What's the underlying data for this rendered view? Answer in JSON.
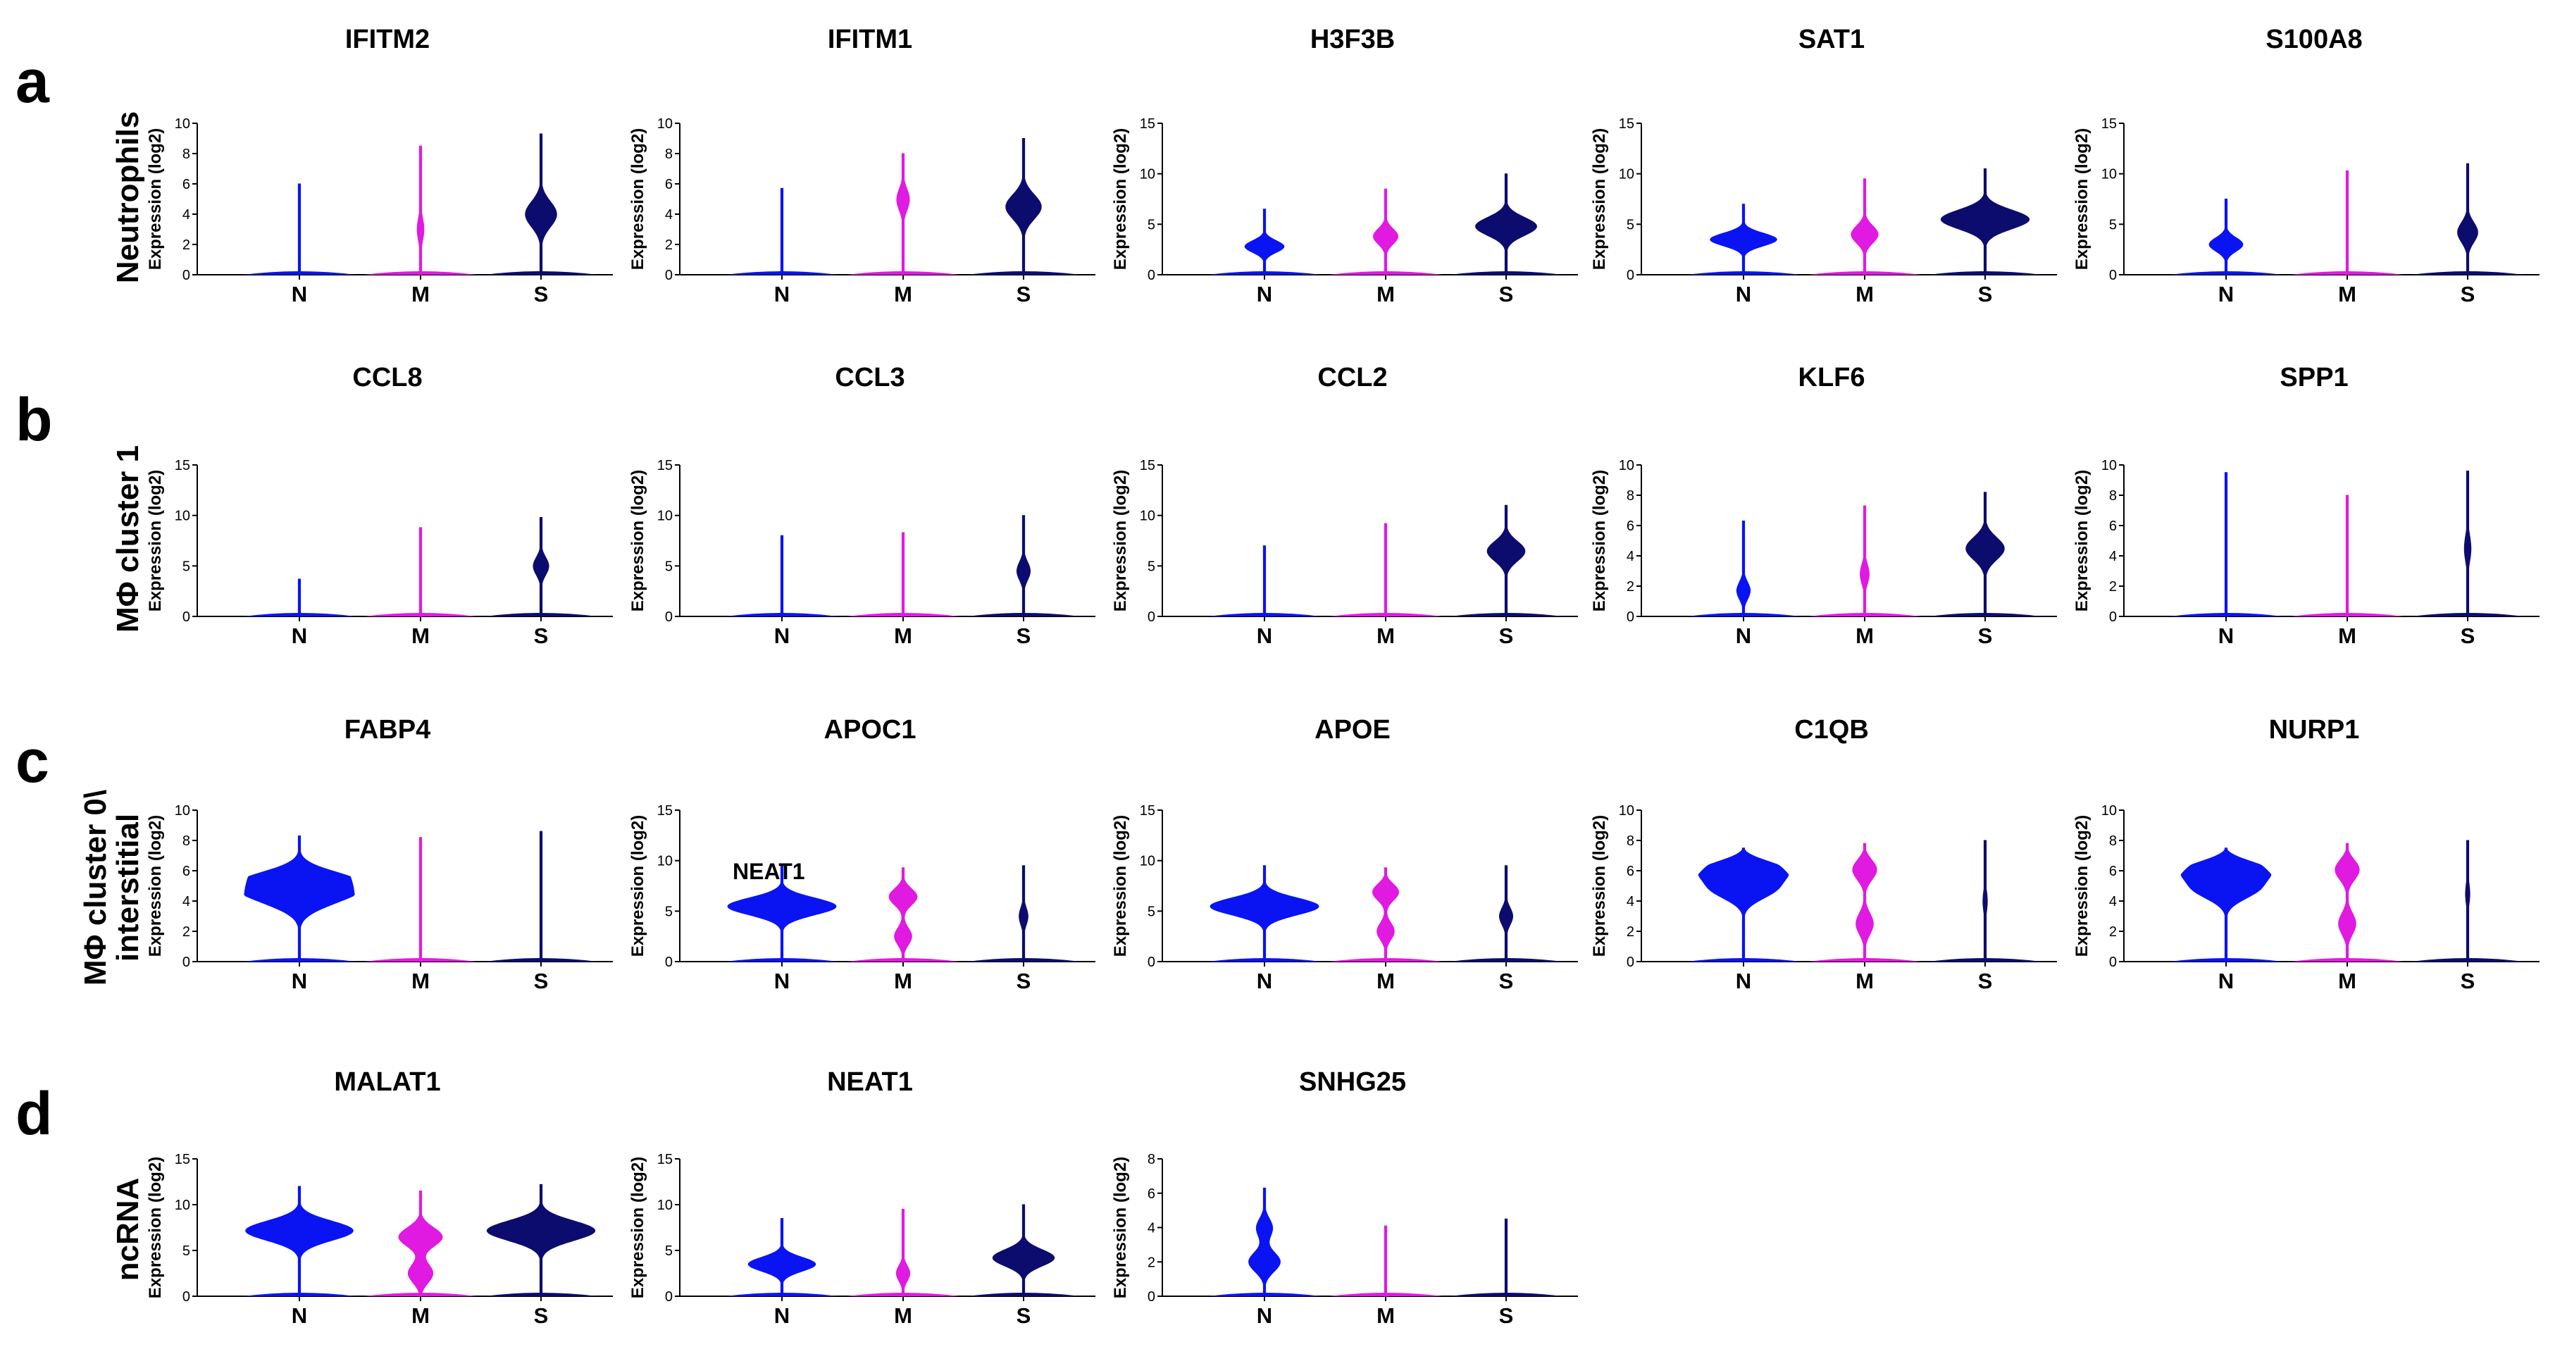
{
  "panels": [
    {
      "letter": "a",
      "label": [
        "Neutrophils"
      ]
    },
    {
      "letter": "b",
      "label": [
        "MΦ cluster 1"
      ]
    },
    {
      "letter": "c",
      "label": [
        "MΦ cluster 0\\",
        "interstitial"
      ]
    },
    {
      "letter": "d",
      "label": [
        "ncRNA"
      ]
    }
  ],
  "colors": {
    "N": "#0a14f2",
    "M": "#e01ae0",
    "S": "#0c0c6e"
  },
  "chart_data": [
    {
      "type": "violin",
      "panel": "a",
      "title": "IFITM2",
      "categories": [
        "N",
        "M",
        "S"
      ],
      "ylabel": "Expression (log2)",
      "ylim": [
        0,
        10
      ],
      "yticks": [
        0,
        2,
        4,
        6,
        8,
        10
      ],
      "series": [
        {
          "name": "N",
          "max": 6.0,
          "peak": [
            1.0
          ],
          "width": 0.02
        },
        {
          "name": "M",
          "max": 8.5,
          "peak": [
            3.0
          ],
          "width": 0.06
        },
        {
          "name": "S",
          "max": 9.3,
          "peak": [
            4.0
          ],
          "width": 0.28
        }
      ]
    },
    {
      "type": "violin",
      "panel": "a",
      "title": "IFITM1",
      "categories": [
        "N",
        "M",
        "S"
      ],
      "ylabel": "Expression (log2)",
      "ylim": [
        0,
        10
      ],
      "yticks": [
        0,
        2,
        4,
        6,
        8,
        10
      ],
      "series": [
        {
          "name": "N",
          "max": 5.7,
          "peak": [
            1.0
          ],
          "width": 0.01
        },
        {
          "name": "M",
          "max": 8.0,
          "peak": [
            5.0
          ],
          "width": 0.12
        },
        {
          "name": "S",
          "max": 9.0,
          "peak": [
            4.5
          ],
          "width": 0.32
        }
      ]
    },
    {
      "type": "violin",
      "panel": "a",
      "title": "H3F3B",
      "categories": [
        "N",
        "M",
        "S"
      ],
      "ylabel": "Expression (log2)",
      "ylim": [
        0,
        15
      ],
      "yticks": [
        0,
        5,
        10,
        15
      ],
      "series": [
        {
          "name": "N",
          "max": 6.5,
          "peak": [
            2.8
          ],
          "width": 0.35
        },
        {
          "name": "M",
          "max": 8.5,
          "peak": [
            3.8
          ],
          "width": 0.22
        },
        {
          "name": "S",
          "max": 10.0,
          "peak": [
            4.8
          ],
          "width": 0.55
        }
      ]
    },
    {
      "type": "violin",
      "panel": "a",
      "title": "SAT1",
      "categories": [
        "N",
        "M",
        "S"
      ],
      "ylabel": "Expression (log2)",
      "ylim": [
        0,
        15
      ],
      "yticks": [
        0,
        5,
        10,
        15
      ],
      "series": [
        {
          "name": "N",
          "max": 7.0,
          "peak": [
            3.5
          ],
          "width": 0.6
        },
        {
          "name": "M",
          "max": 9.5,
          "peak": [
            4.0
          ],
          "width": 0.24
        },
        {
          "name": "S",
          "max": 10.5,
          "peak": [
            5.5
          ],
          "width": 0.8
        }
      ]
    },
    {
      "type": "violin",
      "panel": "a",
      "title": "S100A8",
      "categories": [
        "N",
        "M",
        "S"
      ],
      "ylabel": "Expression (log2)",
      "ylim": [
        0,
        15
      ],
      "yticks": [
        0,
        5,
        10,
        15
      ],
      "series": [
        {
          "name": "N",
          "max": 7.5,
          "peak": [
            3.0
          ],
          "width": 0.3
        },
        {
          "name": "M",
          "max": 10.3,
          "peak": [
            1.0
          ],
          "width": 0.02
        },
        {
          "name": "S",
          "max": 11.0,
          "peak": [
            4.2
          ],
          "width": 0.18
        }
      ]
    },
    {
      "type": "violin",
      "panel": "b",
      "title": "CCL8",
      "categories": [
        "N",
        "M",
        "S"
      ],
      "ylabel": "Expression (log2)",
      "ylim": [
        0,
        15
      ],
      "yticks": [
        0,
        5,
        10,
        15
      ],
      "series": [
        {
          "name": "N",
          "max": 3.7,
          "peak": [
            0.8
          ],
          "width": 0.01
        },
        {
          "name": "M",
          "max": 8.8,
          "peak": [
            2.0
          ],
          "width": 0.01
        },
        {
          "name": "S",
          "max": 9.8,
          "peak": [
            5.0
          ],
          "width": 0.14
        }
      ]
    },
    {
      "type": "violin",
      "panel": "b",
      "title": "CCL3",
      "categories": [
        "N",
        "M",
        "S"
      ],
      "ylabel": "Expression (log2)",
      "ylim": [
        0,
        15
      ],
      "yticks": [
        0,
        5,
        10,
        15
      ],
      "series": [
        {
          "name": "N",
          "max": 8.0,
          "peak": [
            1.0
          ],
          "width": 0.01
        },
        {
          "name": "M",
          "max": 8.3,
          "peak": [
            1.0
          ],
          "width": 0.01
        },
        {
          "name": "S",
          "max": 10.0,
          "peak": [
            4.5
          ],
          "width": 0.12
        }
      ]
    },
    {
      "type": "violin",
      "panel": "b",
      "title": "CCL2",
      "categories": [
        "N",
        "M",
        "S"
      ],
      "ylabel": "Expression (log2)",
      "ylim": [
        0,
        15
      ],
      "yticks": [
        0,
        5,
        10,
        15
      ],
      "series": [
        {
          "name": "N",
          "max": 7.0,
          "peak": [
            1.0
          ],
          "width": 0.01
        },
        {
          "name": "M",
          "max": 9.2,
          "peak": [
            1.0
          ],
          "width": 0.01
        },
        {
          "name": "S",
          "max": 11.0,
          "peak": [
            6.5
          ],
          "width": 0.35
        }
      ]
    },
    {
      "type": "violin",
      "panel": "b",
      "title": "KLF6",
      "categories": [
        "N",
        "M",
        "S"
      ],
      "ylabel": "Expression (log2)",
      "ylim": [
        0,
        10
      ],
      "yticks": [
        0,
        2,
        4,
        6,
        8,
        10
      ],
      "series": [
        {
          "name": "N",
          "max": 6.3,
          "peak": [
            1.7
          ],
          "width": 0.12
        },
        {
          "name": "M",
          "max": 7.3,
          "peak": [
            2.8
          ],
          "width": 0.08
        },
        {
          "name": "S",
          "max": 8.2,
          "peak": [
            4.5
          ],
          "width": 0.35
        }
      ]
    },
    {
      "type": "violin",
      "panel": "b",
      "title": "SPP1",
      "categories": [
        "N",
        "M",
        "S"
      ],
      "ylabel": "Expression (log2)",
      "ylim": [
        0,
        10
      ],
      "yticks": [
        0,
        2,
        4,
        6,
        8,
        10
      ],
      "series": [
        {
          "name": "N",
          "max": 9.5,
          "peak": [
            1.0
          ],
          "width": 0.01
        },
        {
          "name": "M",
          "max": 8.0,
          "peak": [
            1.0
          ],
          "width": 0.01
        },
        {
          "name": "S",
          "max": 9.6,
          "peak": [
            4.5
          ],
          "width": 0.06
        }
      ]
    },
    {
      "type": "violin",
      "panel": "c",
      "title": "FABP4",
      "categories": [
        "N",
        "M",
        "S"
      ],
      "ylabel": "Expression (log2)",
      "ylim": [
        0,
        10
      ],
      "yticks": [
        0,
        2,
        4,
        6,
        8,
        10
      ],
      "series": [
        {
          "name": "N",
          "max": 8.3,
          "peak": [
            5.3,
            4.2
          ],
          "width": 1.0
        },
        {
          "name": "M",
          "max": 8.2,
          "peak": [
            1.0
          ],
          "width": 0.01
        },
        {
          "name": "S",
          "max": 8.6,
          "peak": [
            1.0
          ],
          "width": 0.01
        }
      ]
    },
    {
      "type": "violin",
      "panel": "c",
      "title": "APOC1",
      "categories": [
        "N",
        "M",
        "S"
      ],
      "ylabel": "Expression (log2)",
      "ylim": [
        0,
        15
      ],
      "yticks": [
        0,
        5,
        10,
        15
      ],
      "series": [
        {
          "name": "N",
          "max": 9.5,
          "peak": [
            5.5
          ],
          "width": 1.0
        },
        {
          "name": "M",
          "max": 9.3,
          "peak": [
            6.5,
            2.5
          ],
          "width": 0.28
        },
        {
          "name": "S",
          "max": 9.5,
          "peak": [
            4.5
          ],
          "width": 0.08
        }
      ]
    },
    {
      "type": "violin",
      "panel": "c",
      "title": "APOE",
      "categories": [
        "N",
        "M",
        "S"
      ],
      "ylabel": "Expression (log2)",
      "ylim": [
        0,
        15
      ],
      "yticks": [
        0,
        5,
        10,
        15
      ],
      "series": [
        {
          "name": "N",
          "max": 9.5,
          "peak": [
            5.5
          ],
          "width": 1.0
        },
        {
          "name": "M",
          "max": 9.3,
          "peak": [
            7.0,
            3.0
          ],
          "width": 0.28
        },
        {
          "name": "S",
          "max": 9.5,
          "peak": [
            4.5
          ],
          "width": 0.12
        }
      ]
    },
    {
      "type": "violin",
      "panel": "c",
      "title": "C1QB",
      "categories": [
        "N",
        "M",
        "S"
      ],
      "ylabel": "Expression (log2)",
      "ylim": [
        0,
        10
      ],
      "yticks": [
        0,
        2,
        4,
        6,
        8,
        10
      ],
      "series": [
        {
          "name": "N",
          "max": 7.5,
          "peak": [
            6.2,
            4.8
          ],
          "width": 1.0
        },
        {
          "name": "M",
          "max": 7.8,
          "peak": [
            6.2,
            2.5
          ],
          "width": 0.28
        },
        {
          "name": "S",
          "max": 8.0,
          "peak": [
            4.0
          ],
          "width": 0.04
        }
      ]
    },
    {
      "type": "violin",
      "panel": "c",
      "title": "NURP1",
      "categories": [
        "N",
        "M",
        "S"
      ],
      "ylabel": "Expression (log2)",
      "ylim": [
        0,
        10
      ],
      "yticks": [
        0,
        2,
        4,
        6,
        8,
        10
      ],
      "series": [
        {
          "name": "N",
          "max": 7.5,
          "peak": [
            6.2,
            4.8
          ],
          "width": 1.0
        },
        {
          "name": "M",
          "max": 7.8,
          "peak": [
            6.2,
            2.5
          ],
          "width": 0.28
        },
        {
          "name": "S",
          "max": 8.0,
          "peak": [
            4.5
          ],
          "width": 0.04
        }
      ]
    },
    {
      "type": "violin",
      "panel": "d",
      "title": "MALAT1",
      "categories": [
        "N",
        "M",
        "S"
      ],
      "ylabel": "Expression (log2)",
      "ylim": [
        0,
        15
      ],
      "yticks": [
        0,
        5,
        10,
        15
      ],
      "series": [
        {
          "name": "N",
          "max": 12.0,
          "peak": [
            7.2
          ],
          "width": 1.0
        },
        {
          "name": "M",
          "max": 11.5,
          "peak": [
            6.5,
            2.5
          ],
          "width": 0.4
        },
        {
          "name": "S",
          "max": 12.2,
          "peak": [
            7.2
          ],
          "width": 1.0
        }
      ]
    },
    {
      "type": "violin",
      "panel": "d",
      "title": "NEAT1",
      "categories": [
        "N",
        "M",
        "S"
      ],
      "ylabel": "Expression (log2)",
      "ylim": [
        0,
        15
      ],
      "yticks": [
        0,
        5,
        10,
        15
      ],
      "series": [
        {
          "name": "N",
          "max": 8.5,
          "peak": [
            3.5
          ],
          "width": 0.6
        },
        {
          "name": "M",
          "max": 9.5,
          "peak": [
            2.5
          ],
          "width": 0.12
        },
        {
          "name": "S",
          "max": 10.0,
          "peak": [
            4.2
          ],
          "width": 0.55
        }
      ]
    },
    {
      "type": "violin",
      "panel": "d",
      "title": "SNHG25",
      "categories": [
        "N",
        "M",
        "S"
      ],
      "ylabel": "Expression (log2)",
      "ylim": [
        0,
        8
      ],
      "yticks": [
        0,
        2,
        4,
        6,
        8
      ],
      "series": [
        {
          "name": "N",
          "max": 6.3,
          "peak": [
            2.0,
            4.0
          ],
          "width": 0.28
        },
        {
          "name": "M",
          "max": 4.1,
          "peak": [
            1.0
          ],
          "width": 0.01
        },
        {
          "name": "S",
          "max": 4.5,
          "peak": [
            1.0
          ],
          "width": 0.01
        }
      ]
    }
  ],
  "annotation": {
    "text": "NEAT1"
  }
}
